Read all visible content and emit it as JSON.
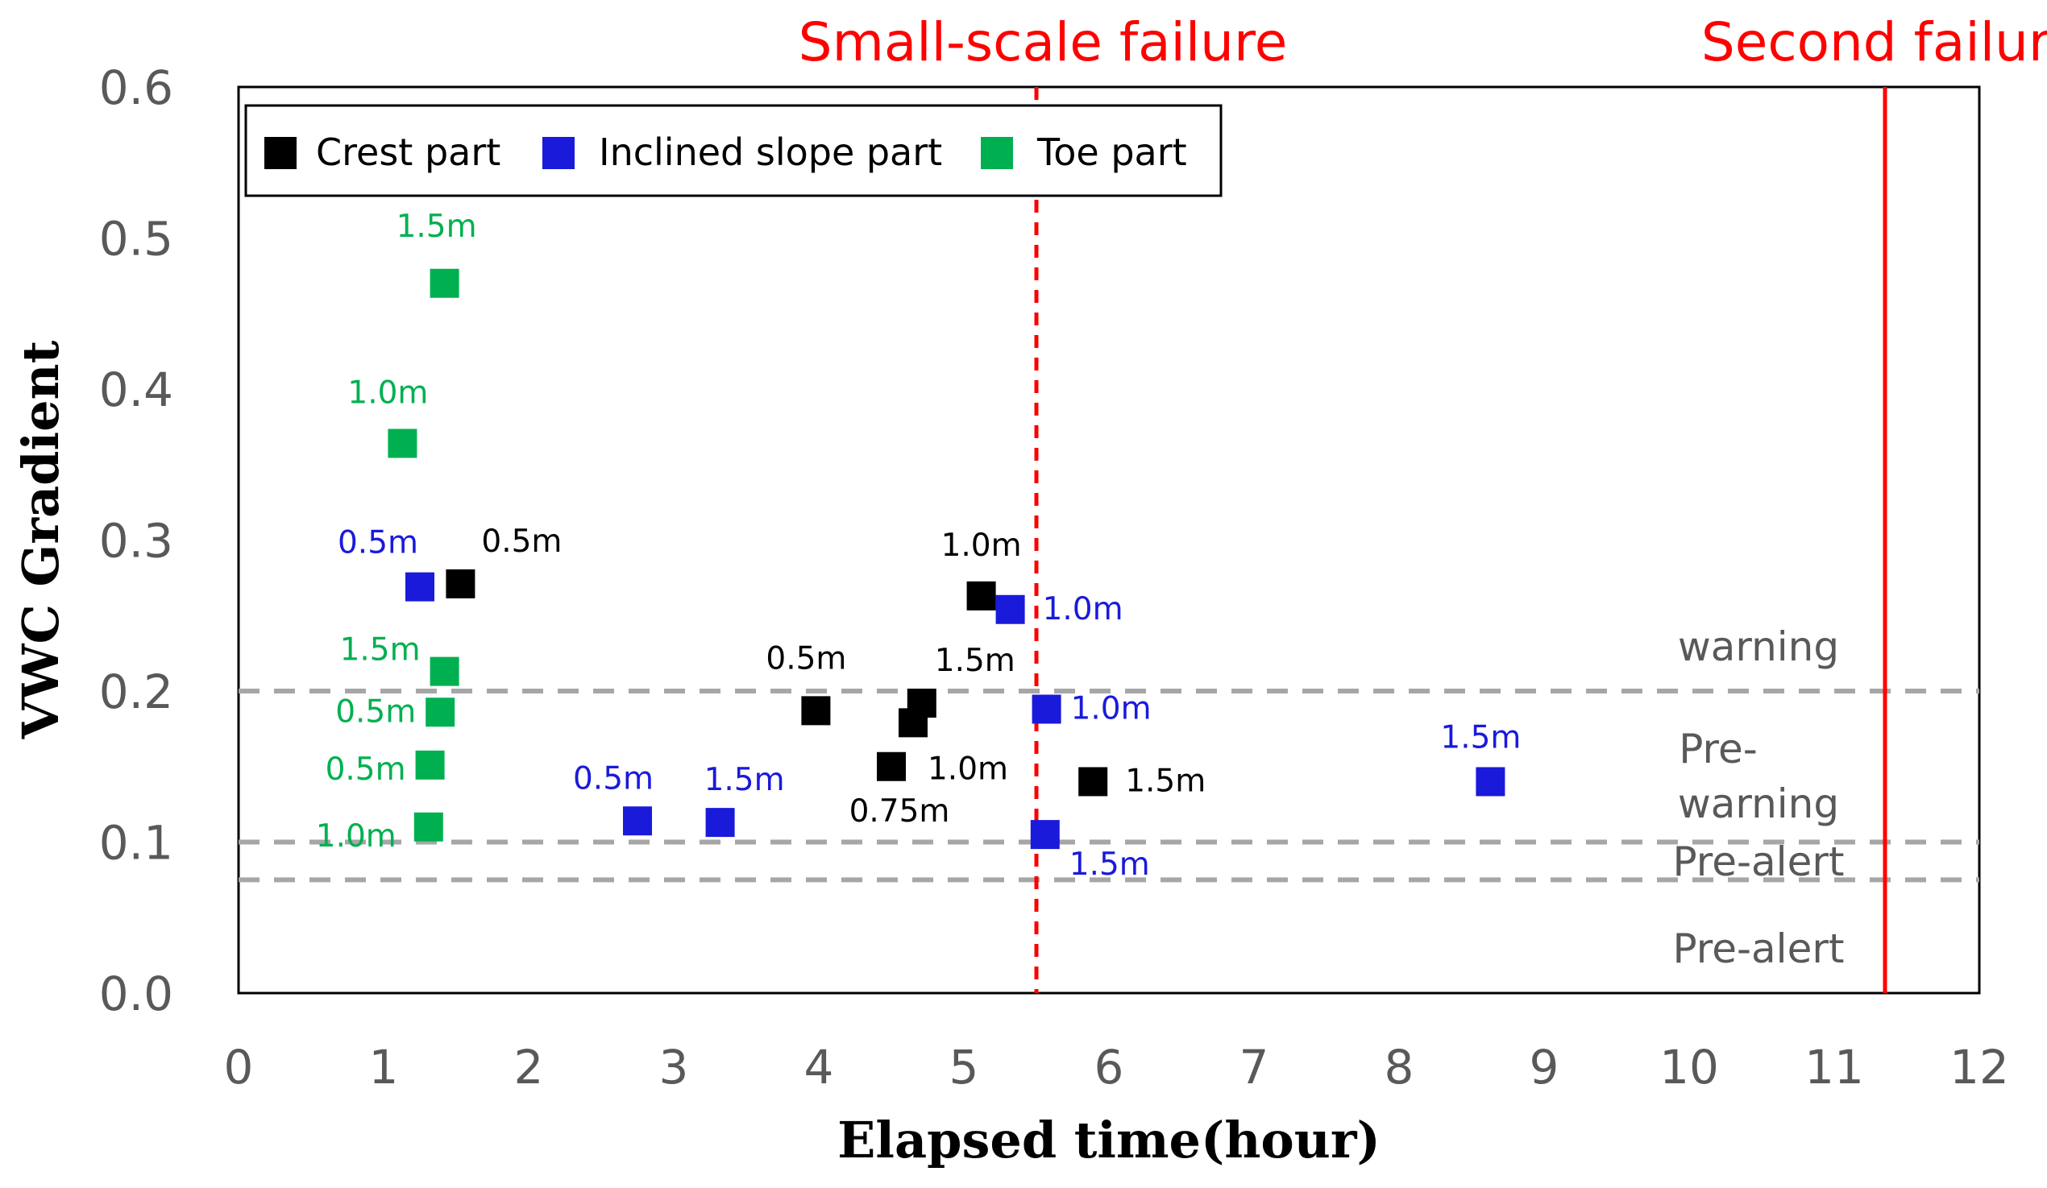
{
  "chart_data": {
    "type": "scatter",
    "xlabel": "Elapsed time(hour)",
    "ylabel": "VWC Gradient",
    "xlim": [
      0,
      12
    ],
    "ylim": [
      0,
      0.6
    ],
    "xticks": [
      "0",
      "1",
      "2",
      "3",
      "4",
      "5",
      "6",
      "7",
      "8",
      "9",
      "10",
      "11",
      "12"
    ],
    "yticks": [
      "0.0",
      "0.1",
      "0.2",
      "0.3",
      "0.4",
      "0.5",
      "0.6"
    ],
    "grid": false,
    "legend_position": "top-left",
    "series": [
      {
        "name": "Crest part",
        "color": "#000000",
        "points": [
          {
            "x": 1.53,
            "y": 0.271,
            "label": "0.5m"
          },
          {
            "x": 5.12,
            "y": 0.263,
            "label": "1.0m"
          },
          {
            "x": 3.98,
            "y": 0.187,
            "label": "0.5m"
          },
          {
            "x": 4.71,
            "y": 0.192,
            "label": "1.5m"
          },
          {
            "x": 4.65,
            "y": 0.179,
            "label": "1.0m"
          },
          {
            "x": 4.5,
            "y": 0.15,
            "label": "0.75m"
          },
          {
            "x": 5.89,
            "y": 0.14,
            "label": "1.5m"
          }
        ]
      },
      {
        "name": "Inclined slope part",
        "color": "#1a1adb",
        "points": [
          {
            "x": 1.25,
            "y": 0.269,
            "label": "0.5m"
          },
          {
            "x": 5.32,
            "y": 0.254,
            "label": "1.0m"
          },
          {
            "x": 5.57,
            "y": 0.188,
            "label": "1.0m"
          },
          {
            "x": 2.75,
            "y": 0.114,
            "label": "0.5m"
          },
          {
            "x": 3.32,
            "y": 0.113,
            "label": "1.5m"
          },
          {
            "x": 5.56,
            "y": 0.105,
            "label": "1.5m"
          },
          {
            "x": 8.63,
            "y": 0.14,
            "label": "1.5m"
          }
        ]
      },
      {
        "name": "Toe part",
        "color": "#00b050",
        "points": [
          {
            "x": 1.42,
            "y": 0.47,
            "label": "1.5m"
          },
          {
            "x": 1.13,
            "y": 0.364,
            "label": "1.0m"
          },
          {
            "x": 1.42,
            "y": 0.213,
            "label": "1.5m"
          },
          {
            "x": 1.39,
            "y": 0.186,
            "label": "0.5m"
          },
          {
            "x": 1.32,
            "y": 0.151,
            "label": "0.5m"
          },
          {
            "x": 1.31,
            "y": 0.11,
            "label": "1.0m"
          }
        ]
      }
    ],
    "threshold_lines": [
      {
        "y": 0.2,
        "style": "dashed",
        "color": "#a6a6a6"
      },
      {
        "y": 0.1,
        "style": "dashed",
        "color": "#a6a6a6"
      },
      {
        "y": 0.075,
        "style": "dashed",
        "color": "#a6a6a6"
      }
    ],
    "zone_labels": {
      "warning": "warning",
      "pre_warning_1": "Pre-",
      "pre_warning_2": "warning",
      "pre_alert_upper": "Pre-alert",
      "pre_alert_lower": "Pre-alert"
    },
    "events": [
      {
        "x": 5.5,
        "label": "Small-scale failure",
        "style": "dashed",
        "color": "#ff0000"
      },
      {
        "x": 11.35,
        "label": "Second failure",
        "style": "solid",
        "color": "#ff0000"
      }
    ]
  }
}
